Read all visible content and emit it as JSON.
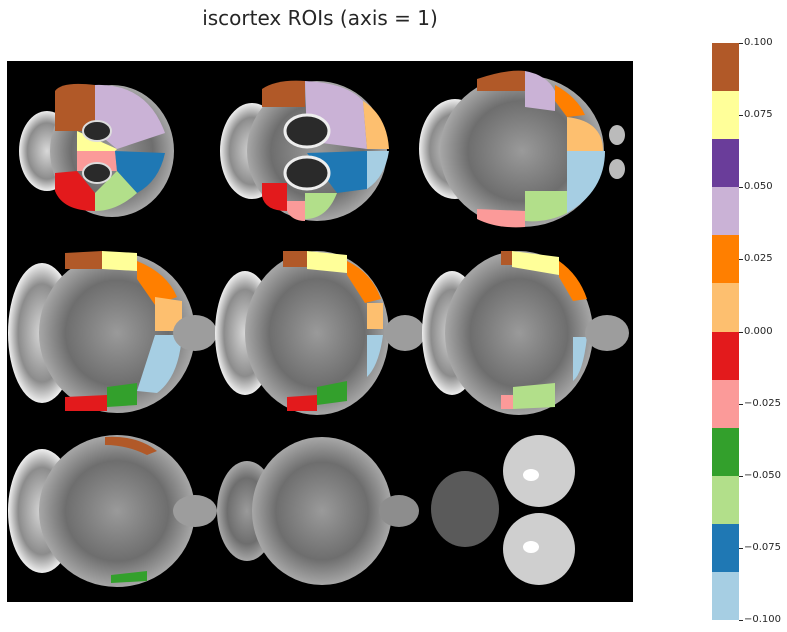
{
  "title": "iscortex ROIs (axis = 1)",
  "colorbar": {
    "ticks": [
      "0.100",
      "0.075",
      "0.050",
      "0.025",
      "0.000",
      "−0.025",
      "−0.050",
      "−0.075",
      "−0.100"
    ],
    "colors": [
      "#b15928",
      "#ffff99",
      "#6a3d9a",
      "#cab2d6",
      "#ff7f00",
      "#fdbf6f",
      "#e31a1c",
      "#fb9a99",
      "#33a02c",
      "#b2df8a",
      "#1f78b4",
      "#a6cee3"
    ]
  },
  "image": {
    "grid": "3 rows x 3 columns of axial brain slices on black background",
    "background": "#000000"
  }
}
